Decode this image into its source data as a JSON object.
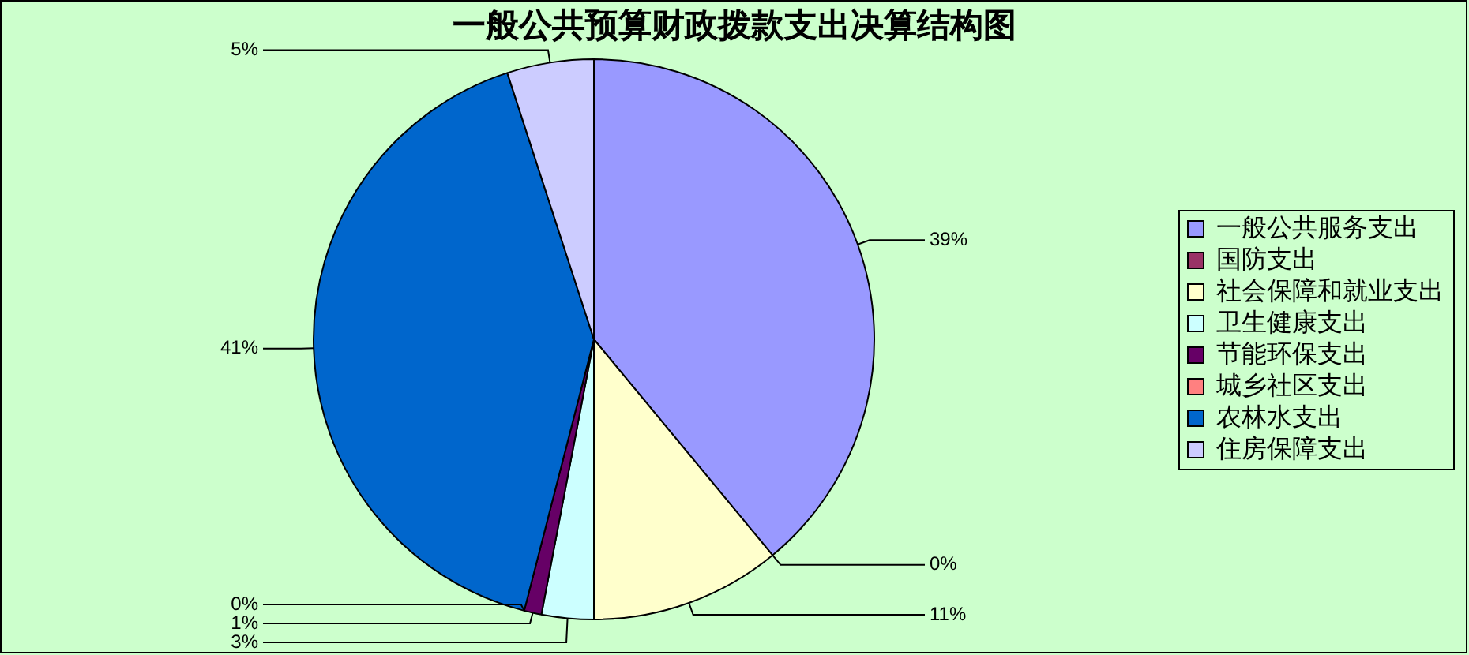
{
  "chart_data": {
    "type": "pie",
    "title": "一般公共预算财政拨款支出决算结构图",
    "categories": [
      "一般公共服务支出",
      "国防支出",
      "社会保障和就业支出",
      "卫生健康支出",
      "节能环保支出",
      "城乡社区支出",
      "农林水支出",
      "住房保障支出"
    ],
    "values": [
      39,
      0,
      11,
      3,
      1,
      0,
      41,
      5
    ],
    "colors": [
      "#9999ff",
      "#993366",
      "#ffffcc",
      "#ccffff",
      "#660066",
      "#ff8080",
      "#0066cc",
      "#ccccff"
    ],
    "value_labels": [
      "39%",
      "0%",
      "11%",
      "3%",
      "1%",
      "0%",
      "41%",
      "5%"
    ],
    "legend": "right"
  }
}
